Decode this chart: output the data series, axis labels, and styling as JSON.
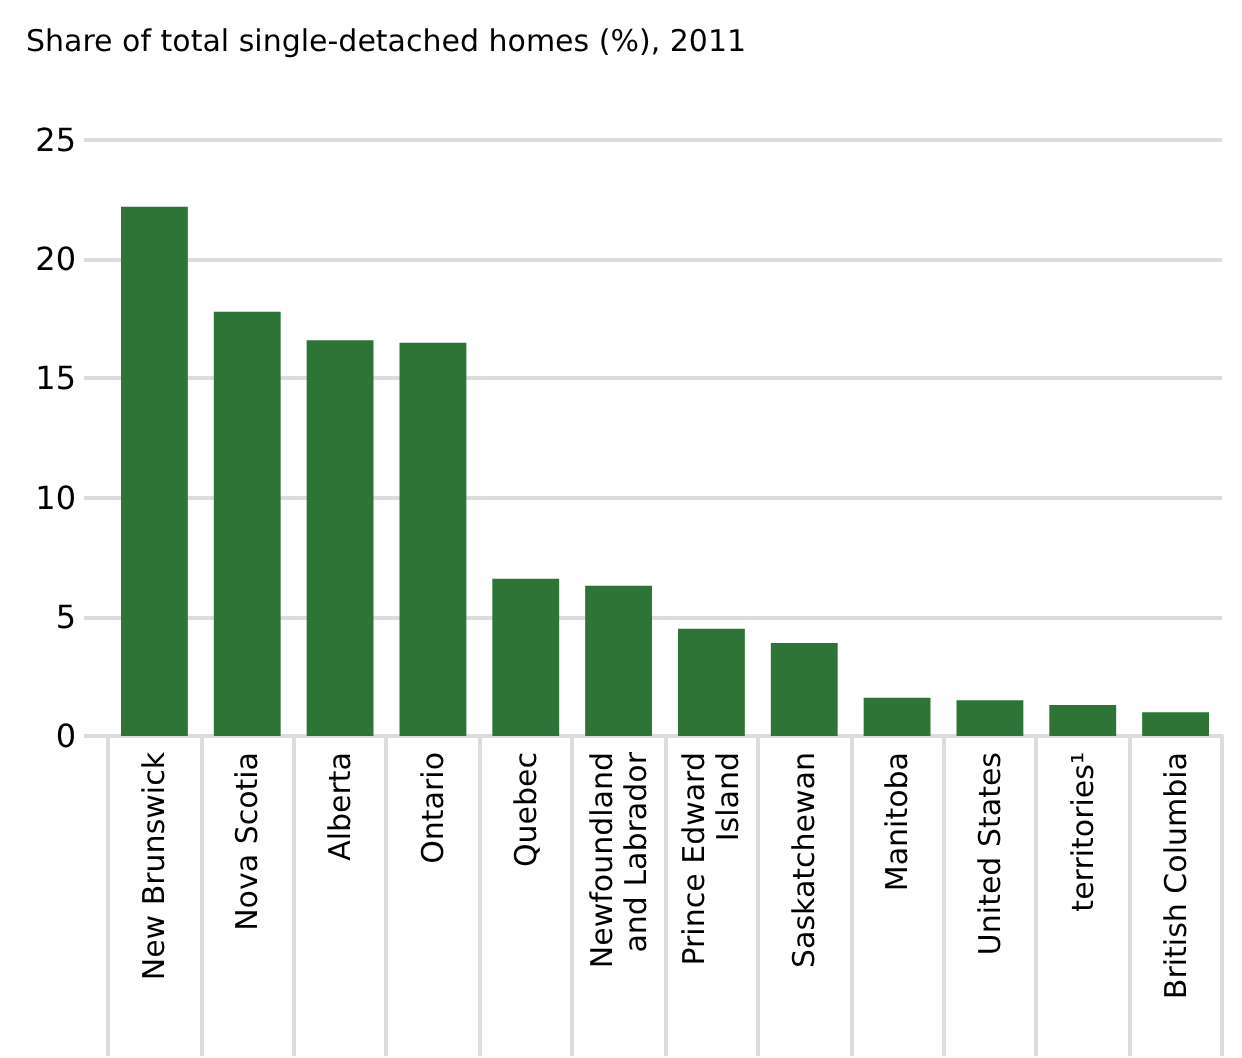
{
  "chart_data": {
    "type": "bar",
    "title": "Share of total single-detached homes (%), 2011",
    "categories": [
      "New Brunswick",
      "Nova Scotia",
      "Alberta",
      "Ontario",
      "Quebec",
      "Newfoundland\nand Labrador",
      "Prince Edward\nIsland",
      "Saskatchewan",
      "Manitoba",
      "United States",
      "territories¹",
      "British Columbia"
    ],
    "values": [
      22.2,
      17.8,
      16.6,
      16.5,
      6.6,
      6.3,
      4.5,
      3.9,
      1.6,
      1.5,
      1.3,
      1.0
    ],
    "color": "#2e7436",
    "ylim": [
      0,
      25
    ],
    "yticks": [
      0,
      5,
      10,
      15,
      20,
      25
    ],
    "grid": "y"
  }
}
